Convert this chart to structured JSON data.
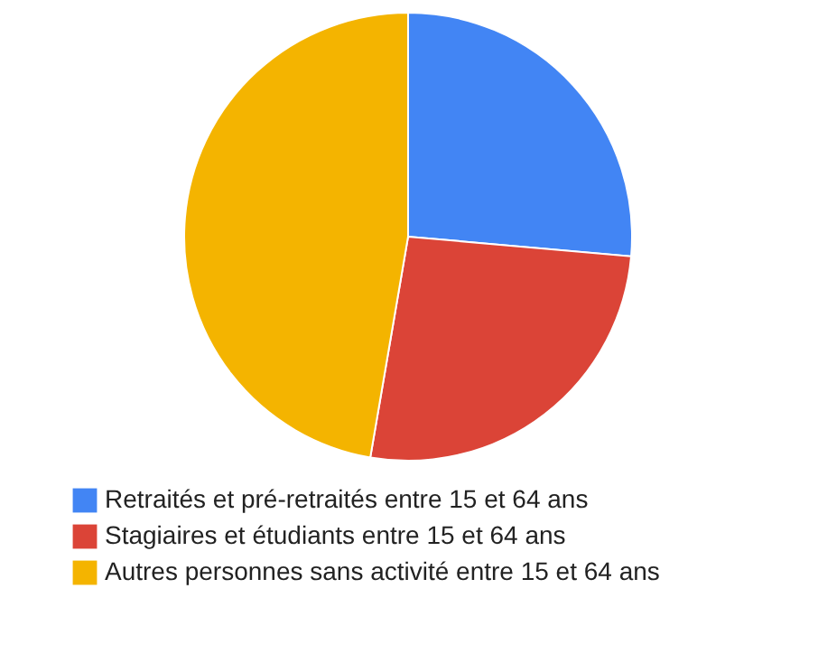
{
  "chart_data": {
    "type": "pie",
    "categories": [
      "Retraités et pré-retraités entre 15 et 64 ans",
      "Stagiaires et étudiants entre 15 et 64 ans",
      "Autres personnes sans activité entre 15 et 64 ans"
    ],
    "values": [
      26.4,
      26.3,
      47.3
    ],
    "colors": [
      "#4285f4",
      "#db4437",
      "#f4b400"
    ],
    "legend": "bottom"
  }
}
